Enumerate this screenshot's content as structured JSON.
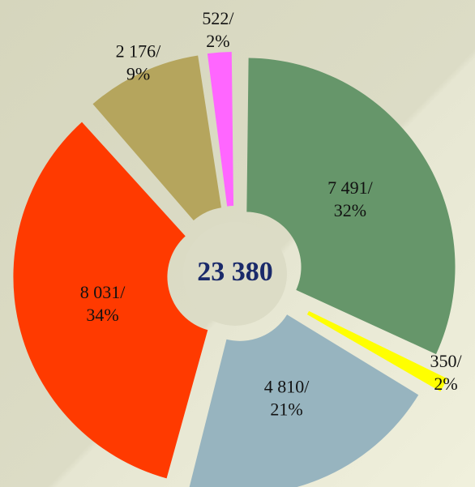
{
  "chart_data": {
    "type": "donut",
    "values": [
      7491,
      350,
      4810,
      8031,
      2176,
      522
    ],
    "value_labels": [
      "7 491/",
      "350/",
      "4 810/",
      "8 031/",
      "2 176/",
      "522/"
    ],
    "percent_labels": [
      "32%",
      "2%",
      "21%",
      "34%",
      "9%",
      "2%"
    ],
    "colors": [
      "#66966a",
      "#ffff00",
      "#97b4bf",
      "#ff3a00",
      "#b5a55d",
      "#ff66ff"
    ],
    "total": 23380,
    "total_label": "23 380"
  }
}
